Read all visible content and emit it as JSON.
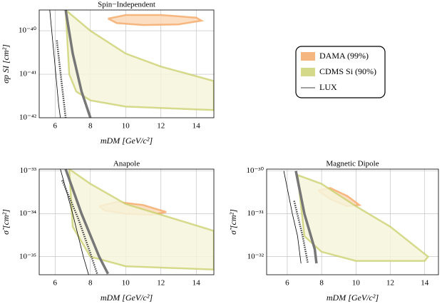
{
  "chart_data": [
    {
      "type": "region",
      "title": "Spin−Independent",
      "xlabel": "mDM [GeV/c²]",
      "ylabel": "σp SI [cm²]",
      "xlim": [
        5.1,
        15
      ],
      "xticks": [
        6,
        8,
        10,
        12,
        14
      ],
      "ylim": [
        1e-42,
        3e-40
      ],
      "ylog": true,
      "grid": true,
      "legend": "right",
      "yticks": [
        {
          "value": 1e-42,
          "label": "10⁻⁴²"
        },
        {
          "value": 1e-41,
          "label": "10⁻⁴¹"
        },
        {
          "value": 1e-40,
          "label": "10⁻⁴⁰"
        }
      ],
      "series": [
        {
          "name": "DAMA (99%)",
          "color": "#f4a460",
          "fill": "#fbd9b8",
          "x": [
            9,
            10,
            12,
            14,
            14.3,
            13,
            11,
            9.5,
            9
          ],
          "y": [
            1.9e-40,
            2.3e-40,
            2.3e-40,
            2e-40,
            1.7e-40,
            1.4e-40,
            1.35e-40,
            1.5e-40,
            1.9e-40
          ]
        },
        {
          "name": "CDMS Si (90%)",
          "color": "#c8cf6a",
          "fill": "#f6f5dc",
          "x": [
            6.6,
            8,
            10,
            12,
            15,
            15,
            10,
            8,
            7.2,
            6.8,
            6.6
          ],
          "y": [
            3e-40,
            1e-40,
            3e-41,
            1.5e-41,
            7e-42,
            1.5e-42,
            1.8e-42,
            2.5e-42,
            4e-42,
            1e-41,
            3e-40
          ]
        },
        {
          "name": "LUX",
          "color": "#000000",
          "x": [
            5.7,
            6,
            6.2,
            6.3
          ],
          "y": [
            3e-40,
            1.5e-41,
            2e-42,
            1e-42
          ]
        },
        {
          "color": "#444444",
          "x": [
            6.1,
            6.4,
            6.6
          ],
          "y": [
            6e-41,
            5e-42,
            1e-42
          ]
        },
        {
          "color": "#777777",
          "x": [
            6.6,
            7,
            7.5,
            8
          ],
          "y": [
            3e-40,
            3e-41,
            4e-42,
            1e-42
          ]
        }
      ]
    },
    {
      "type": "region",
      "title": "Anapole",
      "xlabel": "mDM [GeV/c²]",
      "ylabel": "σ̃ [cm²]",
      "xlim": [
        5.1,
        15
      ],
      "xticks": [
        6,
        8,
        10,
        12,
        14
      ],
      "ylim": [
        3.8e-36,
        1.1e-33
      ],
      "ylog": true,
      "grid": true,
      "yticks": [
        {
          "value": 1e-35,
          "label": "10⁻³⁵"
        },
        {
          "value": 1e-34,
          "label": "10⁻³⁴"
        },
        {
          "value": 1e-33,
          "label": "10⁻³³"
        }
      ],
      "series": [
        {
          "color": "#f4a460",
          "fill": "#fbd9b8",
          "x": [
            8.5,
            9.5,
            11,
            12.3,
            11.5,
            10,
            8.8,
            8.5
          ],
          "y": [
            1.5e-34,
            1.9e-34,
            1.6e-34,
            1.1e-34,
            9.5e-35,
            1e-34,
            1.2e-34,
            1.5e-34
          ]
        },
        {
          "color": "#c8cf6a",
          "fill": "#f6f5dc",
          "x": [
            6.8,
            8,
            10,
            15,
            15,
            10,
            8,
            7,
            6.8
          ],
          "y": [
            1.1e-33,
            5e-34,
            1.7e-34,
            4e-35,
            5e-36,
            6e-36,
            1e-35,
            5e-35,
            1.1e-33
          ]
        },
        {
          "color": "#000000",
          "x": [
            6.3,
            7,
            7.6,
            7.9
          ],
          "y": [
            1.1e-33,
            1e-34,
            1e-35,
            3.8e-36
          ]
        },
        {
          "color": "#444444",
          "x": [
            6.4,
            7.3,
            8,
            8.4
          ],
          "y": [
            6e-34,
            8e-35,
            1.2e-35,
            3.8e-36
          ]
        },
        {
          "color": "#777777",
          "x": [
            6.6,
            7.5,
            8.5,
            9
          ],
          "y": [
            1.1e-33,
            1e-34,
            1e-35,
            4e-36
          ]
        }
      ]
    },
    {
      "type": "region",
      "title": "Magnetic Dipole",
      "xlabel": "mDM [GeV/c²]",
      "ylabel": "σ̃ [cm²]",
      "xlim": [
        4.8,
        14.8
      ],
      "xticks": [
        6,
        8,
        10,
        12,
        14
      ],
      "ylim": [
        3.8e-33,
        1.1e-30
      ],
      "ylog": true,
      "grid": true,
      "yticks": [
        {
          "value": 1e-32,
          "label": "10⁻³²"
        },
        {
          "value": 1e-31,
          "label": "10⁻³¹"
        },
        {
          "value": 1e-30,
          "label": "10⁻³⁰"
        }
      ],
      "series": [
        {
          "color": "#f4a460",
          "fill": "#fbd9b8",
          "x": [
            7.8,
            8.5,
            9.5,
            10.2,
            9.5,
            8.5,
            7.8
          ],
          "y": [
            3.5e-31,
            4e-31,
            2.6e-31,
            1.6e-31,
            1.5e-31,
            2.2e-31,
            3.5e-31
          ]
        },
        {
          "color": "#c8cf6a",
          "fill": "#f6f5dc",
          "x": [
            6.6,
            8,
            10,
            12,
            14.2,
            14,
            10,
            8,
            7,
            6.6
          ],
          "y": [
            8e-31,
            5e-31,
            1.5e-31,
            5e-32,
            1e-32,
            8e-33,
            8e-33,
            1.3e-32,
            3e-32,
            8e-31
          ]
        },
        {
          "color": "#000000",
          "x": [
            5.8,
            6.3,
            6.6,
            6.8
          ],
          "y": [
            1e-30,
            1e-31,
            3e-32,
            7e-33
          ]
        },
        {
          "color": "#444444",
          "x": [
            6.4,
            6.9,
            7.2
          ],
          "y": [
            2e-31,
            3e-32,
            7e-33
          ]
        },
        {
          "color": "#777777",
          "x": [
            6.5,
            7,
            7.6,
            7.7
          ],
          "y": [
            1e-30,
            1e-31,
            1.5e-32,
            7e-33
          ]
        }
      ]
    }
  ]
}
